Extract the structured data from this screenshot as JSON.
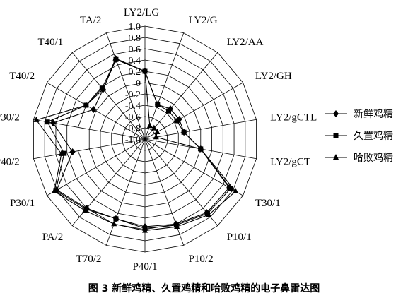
{
  "caption": "图 3 新鲜鸡精、久置鸡精和哈败鸡精的电子鼻雷达图",
  "chart_data": {
    "type": "radar",
    "axes": [
      "LY2/LG",
      "LY2/G",
      "LY2/AA",
      "LY2/GH",
      "LY2/gCTL",
      "LY2/gCT",
      "T30/1",
      "P10/1",
      "P10/2",
      "P40/1",
      "T70/2",
      "PA/2",
      "P30/1",
      "P40/2",
      "P30/2",
      "T40/2",
      "T40/1",
      "TA/2"
    ],
    "rlim": [
      -1.0,
      1.0
    ],
    "ticks": [
      "1.0",
      "0.8",
      "0.6",
      "0.4",
      "0.2",
      "0",
      "-0.2",
      "-0.4",
      "-0.6",
      "-0.8",
      "-1.0"
    ],
    "tick_values": [
      1.0,
      0.8,
      0.6,
      0.4,
      0.2,
      0,
      -0.2,
      -0.4,
      -0.6,
      -0.8,
      -1.0
    ],
    "grid": true,
    "legend_position": "right",
    "series": [
      {
        "name": "新鲜鸡精",
        "marker": "diamond",
        "values": [
          0.2,
          -0.35,
          -0.3,
          -0.3,
          -0.3,
          0.0,
          0.72,
          0.7,
          0.6,
          0.55,
          0.5,
          0.6,
          0.8,
          0.3,
          0.65,
          0.05,
          0.15,
          0.5
        ]
      },
      {
        "name": "久置鸡精",
        "marker": "square",
        "values": [
          0.2,
          -0.35,
          -0.35,
          -0.35,
          -0.3,
          0.0,
          0.75,
          0.72,
          0.62,
          0.58,
          0.5,
          0.62,
          0.82,
          0.45,
          0.75,
          0.2,
          0.18,
          0.5
        ]
      },
      {
        "name": "哈败鸡精",
        "marker": "triangle",
        "values": [
          0.2,
          -0.75,
          -0.75,
          -0.75,
          -0.8,
          0.0,
          0.85,
          0.75,
          0.65,
          0.62,
          0.6,
          0.65,
          0.85,
          0.5,
          0.95,
          0.2,
          0.15,
          0.52
        ]
      }
    ]
  }
}
